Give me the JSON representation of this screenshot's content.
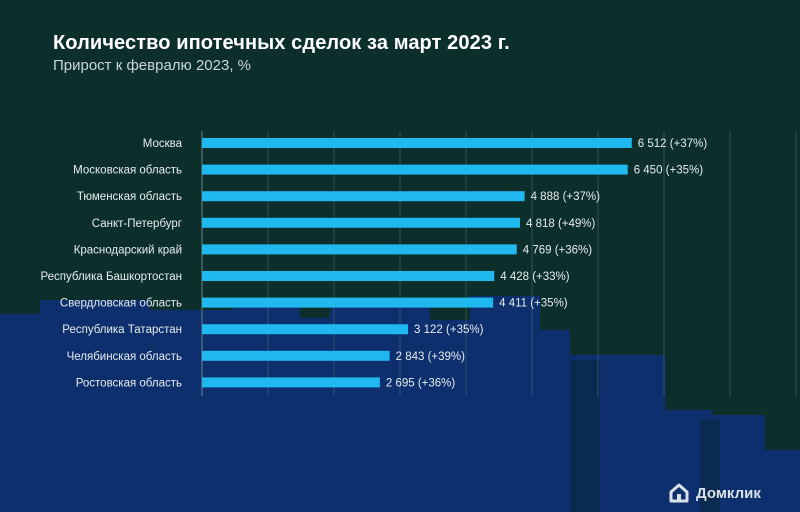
{
  "title": "Количество ипотечных сделок за март 2023 г.",
  "subtitle": "Прирост к февралю 2023, %",
  "brand": "Домклик",
  "colors": {
    "bar": "#1fb8ef",
    "label": "#e6ecec",
    "grid": "#6f8a90",
    "background_top": "#0d2f2c",
    "background_bottom": "#0d2f6e"
  },
  "chart_data": {
    "type": "bar",
    "orientation": "horizontal",
    "categories": [
      "Москва",
      "Московская область",
      "Тюменская область",
      "Санкт-Петербург",
      "Краснодарский край",
      "Республика Башкортостан",
      "Свердловская область",
      "Республика Татарстан",
      "Челябинская область",
      "Ростовская область"
    ],
    "values": [
      6512,
      6450,
      4888,
      4818,
      4769,
      4428,
      4411,
      3122,
      2843,
      2695
    ],
    "data_labels": [
      "6 512 (+37%)",
      "6 450 (+35%)",
      "4 888 (+37%)",
      "4 818 (+49%)",
      "4 769 (+36%)",
      "4 428 (+33%)",
      "4 411 (+35%)",
      "3 122 (+35%)",
      "2 843 (+39%)",
      "2 695 (+36%)"
    ],
    "growth_percent": [
      37,
      35,
      37,
      49,
      36,
      33,
      35,
      35,
      39,
      36
    ],
    "title": "Количество ипотечных сделок за март 2023 г.",
    "subtitle": "Прирост к февралю 2023, %",
    "xlim": [
      0,
      9000
    ],
    "grid": true,
    "x_tick_labels_shown": false
  }
}
